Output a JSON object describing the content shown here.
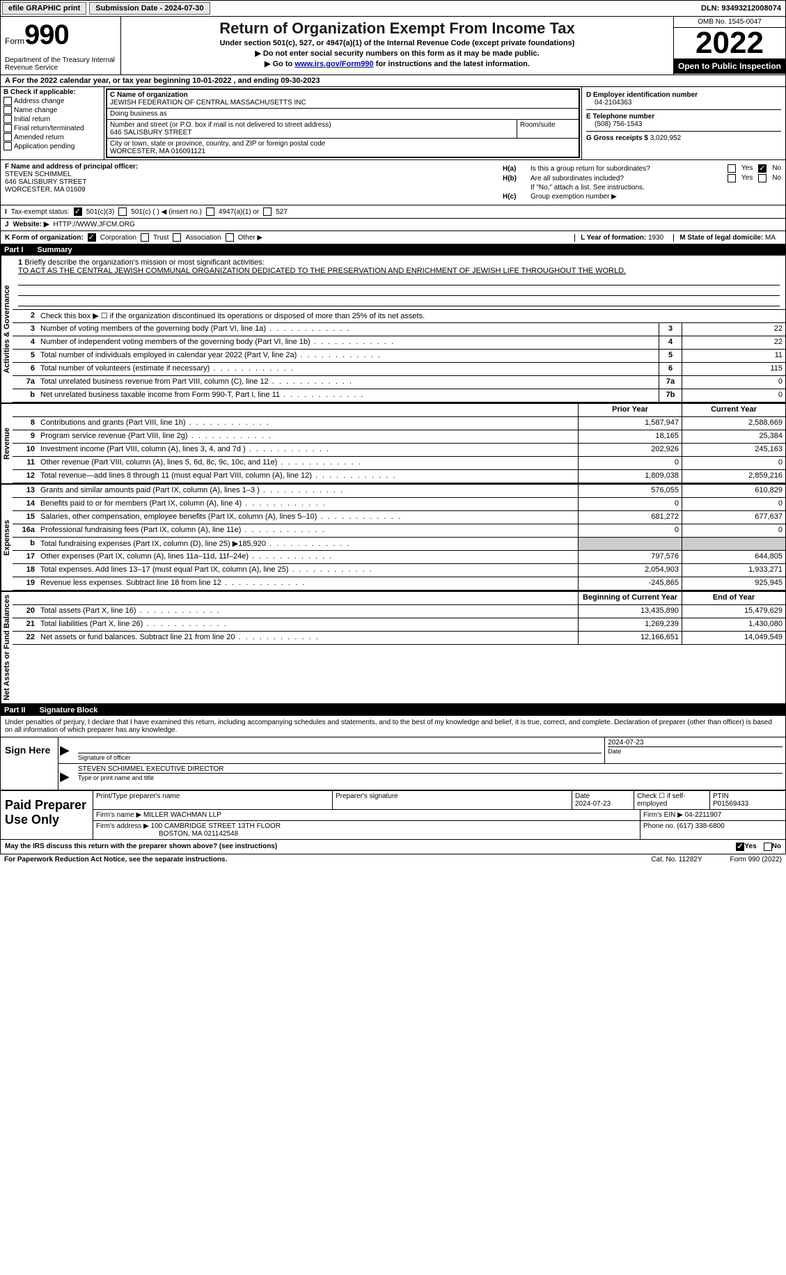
{
  "topbar": {
    "efile_label": "efile GRAPHIC print",
    "sub_label": "Submission Date - 2024-07-30",
    "dln_label": "DLN: 93493212008074"
  },
  "header": {
    "form_word": "Form",
    "form_num": "990",
    "dept": "Department of the Treasury Internal Revenue Service",
    "title": "Return of Organization Exempt From Income Tax",
    "sub1": "Under section 501(c), 527, or 4947(a)(1) of the Internal Revenue Code (except private foundations)",
    "sub2": "Do not enter social security numbers on this form as it may be made public.",
    "sub3_pre": "Go to ",
    "sub3_link": "www.irs.gov/Form990",
    "sub3_post": " for instructions and the latest information.",
    "omb": "OMB No. 1545-0047",
    "tax_year": "2022",
    "inspection": "Open to Public Inspection"
  },
  "period": {
    "label_a": "A For the 2022 calendar year, or tax year beginning ",
    "begin": "10-01-2022",
    "mid": "  , and ending ",
    "end": "09-30-2023"
  },
  "block_b": {
    "header": "B Check if applicable:",
    "items": [
      "Address change",
      "Name change",
      "Initial return",
      "Final return/terminated",
      "Amended return",
      "Application pending"
    ]
  },
  "block_c": {
    "name_label": "C Name of organization",
    "name": "JEWISH FEDERATION OF CENTRAL MASSACHUSETTS INC",
    "dba_label": "Doing business as",
    "addr_label": "Number and street (or P.O. box if mail is not delivered to street address)",
    "addr": "646 SALISBURY STREET",
    "room_label": "Room/suite",
    "city_label": "City or town, state or province, country, and ZIP or foreign postal code",
    "city": "WORCESTER, MA  016091121"
  },
  "block_d": {
    "ein_label": "D Employer identification number",
    "ein": "04-2104363",
    "tel_label": "E Telephone number",
    "tel": "(508) 756-1543",
    "gross_label": "G Gross receipts $",
    "gross": "3,020,952"
  },
  "block_f": {
    "label": "F Name and address of principal officer:",
    "name": "STEVEN SCHIMMEL",
    "addr1": "646 SALISBURY STREET",
    "addr2": "WORCESTER, MA  01609"
  },
  "block_h": {
    "ha_label": "H(a)",
    "ha_text": "Is this a group return for subordinates?",
    "hb_label": "H(b)",
    "hb_text": "Are all subordinates included?",
    "hb_note": "If \"No,\" attach a list. See instructions.",
    "hc_label": "H(c)",
    "hc_text": "Group exemption number ▶",
    "yes": "Yes",
    "no": "No"
  },
  "block_i": {
    "label": "I",
    "text": "Tax-exempt status:",
    "opt1": "501(c)(3)",
    "opt2": "501(c) (  ) ◀ (insert no.)",
    "opt3": "4947(a)(1) or",
    "opt4": "527"
  },
  "block_j": {
    "label": "J",
    "text": "Website: ▶",
    "value": "HTTP://WWW.JFCM.ORG"
  },
  "block_k": {
    "label": "K Form of organization:",
    "opts": [
      "Corporation",
      "Trust",
      "Association",
      "Other ▶"
    ],
    "l_label": "L Year of formation:",
    "l_val": "1930",
    "m_label": "M State of legal domicile:",
    "m_val": "MA"
  },
  "part1": {
    "num": "Part I",
    "title": "Summary",
    "line1_label": "1",
    "line1_text": "Briefly describe the organization's mission or most significant activities:",
    "mission": "TO ACT AS THE CENTRAL JEWISH COMMUNAL ORGANIZATION DEDICATED TO THE PRESERVATION AND ENRICHMENT OF JEWISH LIFE THROUGHOUT THE WORLD.",
    "line2_label": "2",
    "line2_text": "Check this box ▶ ☐ if the organization discontinued its operations or disposed of more than 25% of its net assets."
  },
  "activities_lines": [
    {
      "n": "3",
      "t": "Number of voting members of the governing body (Part VI, line 1a)",
      "box": "3",
      "v": "22"
    },
    {
      "n": "4",
      "t": "Number of independent voting members of the governing body (Part VI, line 1b)",
      "box": "4",
      "v": "22"
    },
    {
      "n": "5",
      "t": "Total number of individuals employed in calendar year 2022 (Part V, line 2a)",
      "box": "5",
      "v": "11"
    },
    {
      "n": "6",
      "t": "Total number of volunteers (estimate if necessary)",
      "box": "6",
      "v": "115"
    },
    {
      "n": "7a",
      "t": "Total unrelated business revenue from Part VIII, column (C), line 12",
      "box": "7a",
      "v": "0"
    },
    {
      "n": "b",
      "t": "Net unrelated business taxable income from Form 990-T, Part I, line 11",
      "box": "7b",
      "v": "0"
    }
  ],
  "col_headers": {
    "prior": "Prior Year",
    "current": "Current Year",
    "begin": "Beginning of Current Year",
    "end": "End of Year"
  },
  "revenue_lines": [
    {
      "n": "8",
      "t": "Contributions and grants (Part VIII, line 1h)",
      "p": "1,587,947",
      "c": "2,588,669"
    },
    {
      "n": "9",
      "t": "Program service revenue (Part VIII, line 2g)",
      "p": "18,165",
      "c": "25,384"
    },
    {
      "n": "10",
      "t": "Investment income (Part VIII, column (A), lines 3, 4, and 7d )",
      "p": "202,926",
      "c": "245,163"
    },
    {
      "n": "11",
      "t": "Other revenue (Part VIII, column (A), lines 5, 6d, 8c, 9c, 10c, and 11e)",
      "p": "0",
      "c": "0"
    },
    {
      "n": "12",
      "t": "Total revenue—add lines 8 through 11 (must equal Part VIII, column (A), line 12)",
      "p": "1,809,038",
      "c": "2,859,216"
    }
  ],
  "expense_lines": [
    {
      "n": "13",
      "t": "Grants and similar amounts paid (Part IX, column (A), lines 1–3 )",
      "p": "576,055",
      "c": "610,829"
    },
    {
      "n": "14",
      "t": "Benefits paid to or for members (Part IX, column (A), line 4)",
      "p": "0",
      "c": "0"
    },
    {
      "n": "15",
      "t": "Salaries, other compensation, employee benefits (Part IX, column (A), lines 5–10)",
      "p": "681,272",
      "c": "677,637"
    },
    {
      "n": "16a",
      "t": "Professional fundraising fees (Part IX, column (A), line 11e)",
      "p": "0",
      "c": "0"
    },
    {
      "n": "b",
      "t": "Total fundraising expenses (Part IX, column (D), line 25) ▶185,920",
      "p": "",
      "c": "",
      "shaded": true
    },
    {
      "n": "17",
      "t": "Other expenses (Part IX, column (A), lines 11a–11d, 11f–24e)",
      "p": "797,576",
      "c": "644,805"
    },
    {
      "n": "18",
      "t": "Total expenses. Add lines 13–17 (must equal Part IX, column (A), line 25)",
      "p": "2,054,903",
      "c": "1,933,271"
    },
    {
      "n": "19",
      "t": "Revenue less expenses. Subtract line 18 from line 12",
      "p": "-245,865",
      "c": "925,945"
    }
  ],
  "netassets_lines": [
    {
      "n": "20",
      "t": "Total assets (Part X, line 16)",
      "p": "13,435,890",
      "c": "15,479,629"
    },
    {
      "n": "21",
      "t": "Total liabilities (Part X, line 26)",
      "p": "1,269,239",
      "c": "1,430,080"
    },
    {
      "n": "22",
      "t": "Net assets or fund balances. Subtract line 21 from line 20",
      "p": "12,166,651",
      "c": "14,049,549"
    }
  ],
  "section_labels": {
    "activities": "Activities & Governance",
    "revenue": "Revenue",
    "expenses": "Expenses",
    "netassets": "Net Assets or Fund Balances"
  },
  "part2": {
    "num": "Part II",
    "title": "Signature Block",
    "penalty": "Under penalties of perjury, I declare that I have examined this return, including accompanying schedules and statements, and to the best of my knowledge and belief, it is true, correct, and complete. Declaration of preparer (other than officer) is based on all information of which preparer has any knowledge."
  },
  "sign": {
    "here": "Sign Here",
    "sig_label": "Signature of officer",
    "date_label": "Date",
    "date": "2024-07-23",
    "name": "STEVEN SCHIMMEL  EXECUTIVE DIRECTOR",
    "name_label": "Type or print name and title"
  },
  "preparer": {
    "title": "Paid Preparer Use Only",
    "name_label": "Print/Type preparer's name",
    "sig_label": "Preparer's signature",
    "date_label": "Date",
    "date": "2024-07-23",
    "self_label": "Check ☐ if self-employed",
    "ptin_label": "PTIN",
    "ptin": "P01569433",
    "firm_label": "Firm's name    ▶",
    "firm": "MILLER WACHMAN LLP",
    "ein_label": "Firm's EIN ▶",
    "ein": "04-2211907",
    "addr_label": "Firm's address ▶",
    "addr1": "100 CAMBRIDGE STREET 13TH FLOOR",
    "addr2": "BOSTON, MA  021142548",
    "phone_label": "Phone no.",
    "phone": "(617) 338-6800"
  },
  "footer": {
    "discuss": "May the IRS discuss this return with the preparer shown above? (see instructions)",
    "yes": "Yes",
    "no": "No",
    "paperwork": "For Paperwork Reduction Act Notice, see the separate instructions.",
    "cat": "Cat. No. 11282Y",
    "form": "Form 990 (2022)"
  }
}
